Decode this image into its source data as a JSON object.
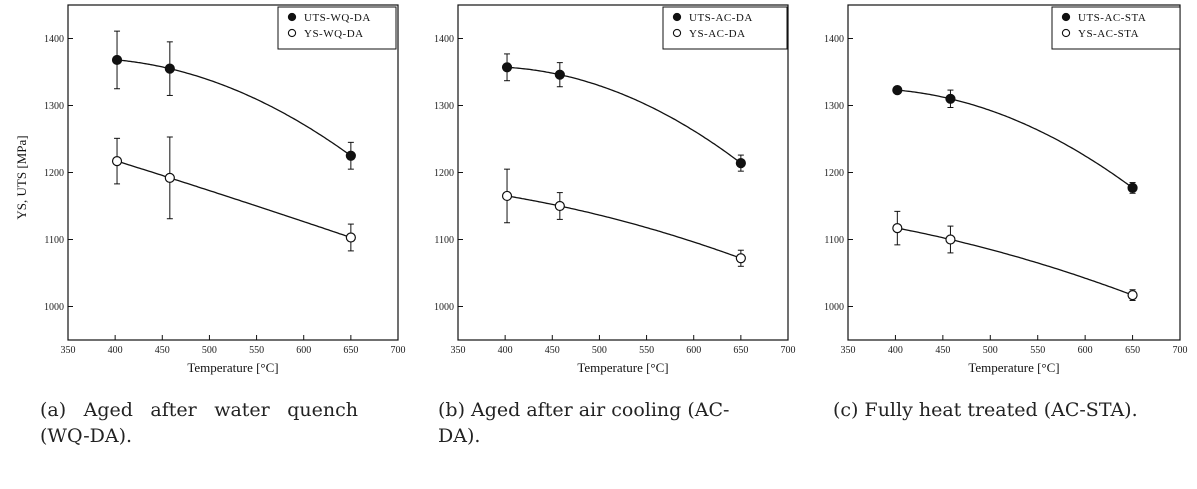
{
  "chart_data": [
    {
      "type": "scatter",
      "panel": "a",
      "xlabel": "Temperature [°C]",
      "ylabel": "YS, UTS [MPa]",
      "xlim": [
        350,
        700
      ],
      "ylim": [
        950,
        1450
      ],
      "xticks": [
        350,
        400,
        450,
        500,
        550,
        600,
        650,
        700
      ],
      "yticks": [
        1000,
        1100,
        1200,
        1300,
        1400
      ],
      "legend_position": "top-right",
      "series": [
        {
          "name": "UTS-WQ-DA",
          "marker": "filled-circle",
          "x": [
            402,
            458,
            650
          ],
          "y": [
            1368,
            1355,
            1225
          ],
          "yerr": [
            43,
            40,
            20
          ]
        },
        {
          "name": "YS-WQ-DA",
          "marker": "open-circle",
          "x": [
            402,
            458,
            650
          ],
          "y": [
            1217,
            1192,
            1103
          ],
          "yerr": [
            34,
            61,
            20
          ]
        }
      ]
    },
    {
      "type": "scatter",
      "panel": "b",
      "xlabel": "Temperature [°C]",
      "ylabel": "",
      "xlim": [
        350,
        700
      ],
      "ylim": [
        950,
        1450
      ],
      "xticks": [
        350,
        400,
        450,
        500,
        550,
        600,
        650,
        700
      ],
      "yticks": [
        1000,
        1100,
        1200,
        1300,
        1400
      ],
      "legend_position": "top-right",
      "series": [
        {
          "name": "UTS-AC-DA",
          "marker": "filled-circle",
          "x": [
            402,
            458,
            650
          ],
          "y": [
            1357,
            1346,
            1214
          ],
          "yerr": [
            20,
            18,
            12
          ]
        },
        {
          "name": "YS-AC-DA",
          "marker": "open-circle",
          "x": [
            402,
            458,
            650
          ],
          "y": [
            1165,
            1150,
            1072
          ],
          "yerr": [
            40,
            20,
            12
          ]
        }
      ]
    },
    {
      "type": "scatter",
      "panel": "c",
      "xlabel": "Temperature [°C]",
      "ylabel": "",
      "xlim": [
        350,
        700
      ],
      "ylim": [
        950,
        1450
      ],
      "xticks": [
        350,
        400,
        450,
        500,
        550,
        600,
        650,
        700
      ],
      "yticks": [
        1000,
        1100,
        1200,
        1300,
        1400
      ],
      "legend_position": "top-right",
      "series": [
        {
          "name": "UTS-AC-STA",
          "marker": "filled-circle",
          "x": [
            402,
            458,
            650
          ],
          "y": [
            1323,
            1310,
            1177
          ],
          "yerr": [
            5,
            13,
            8
          ]
        },
        {
          "name": "YS-AC-STA",
          "marker": "open-circle",
          "x": [
            402,
            458,
            650
          ],
          "y": [
            1117,
            1100,
            1017
          ],
          "yerr": [
            25,
            20,
            8
          ]
        }
      ]
    }
  ],
  "captions": [
    "(a) Aged after water quench (WQ-DA).",
    "(b) Aged after air cooling (AC-DA).",
    "(c) Fully heat treated (AC-STA)."
  ]
}
